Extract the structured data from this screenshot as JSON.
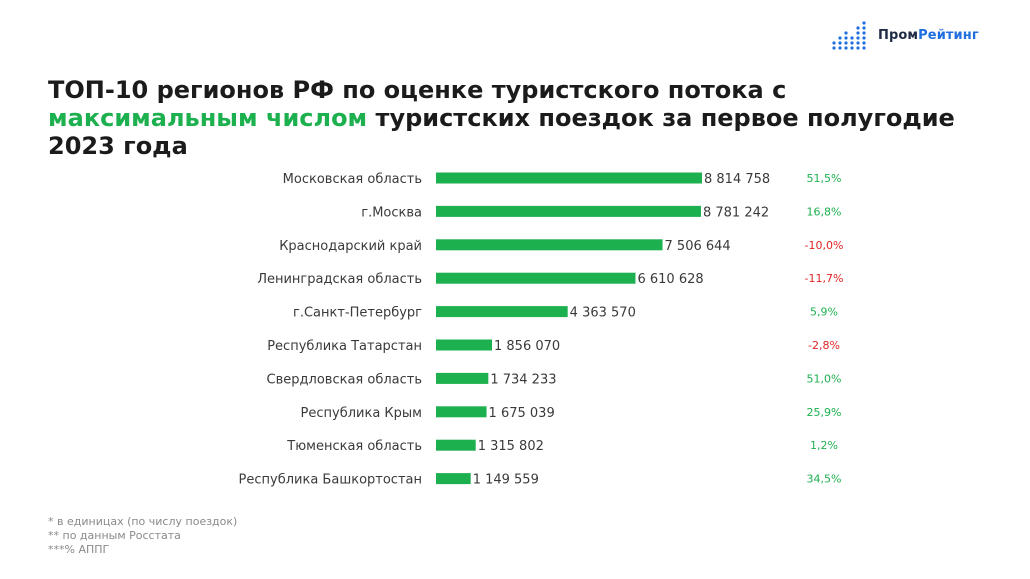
{
  "logo": {
    "brand_part1": "Пром",
    "brand_part2": "Рейтинг"
  },
  "title": {
    "line1": "ТОП-10 регионов РФ по оценке туристского потока с",
    "highlight": "максимальным числом",
    "line2_rest": " туристских поездок за первое полугодие",
    "line3": "2023 года"
  },
  "footnotes": [
    "* в единицах (по числу поездок)",
    "** по данным Росстата",
    "***% АППГ"
  ],
  "colors": {
    "bar": "#1db04f",
    "positive": "#1db04f",
    "negative": "#e02424",
    "label": "#3a3a3a"
  },
  "chart_data": {
    "type": "bar",
    "orientation": "horizontal",
    "categories": [
      "Московская область",
      "г.Москва",
      "Краснодарский край",
      "Ленинградская область",
      "г.Санкт-Петербург",
      "Республика Татарстан",
      "Свердловская область",
      "Республика Крым",
      "Тюменская область",
      "Республика Башкортостан"
    ],
    "values": [
      8814758,
      8781242,
      7506644,
      6610628,
      4363570,
      1856070,
      1734233,
      1675039,
      1315802,
      1149559
    ],
    "value_labels": [
      "8 814 758",
      "8 781 242",
      "7 506 644",
      "6 610 628",
      "4 363 570",
      "1 856 070",
      "1 734 233",
      "1 675 039",
      "1 315 802",
      "1 149 559"
    ],
    "change_labels": [
      "51,5%",
      "16,8%",
      "-10,0%",
      "-11,7%",
      "5,9%",
      "-2,8%",
      "51,0%",
      "25,9%",
      "1,2%",
      "34,5%"
    ],
    "change_values": [
      51.5,
      16.8,
      -10.0,
      -11.7,
      5.9,
      -2.8,
      51.0,
      25.9,
      1.2,
      34.5
    ]
  }
}
